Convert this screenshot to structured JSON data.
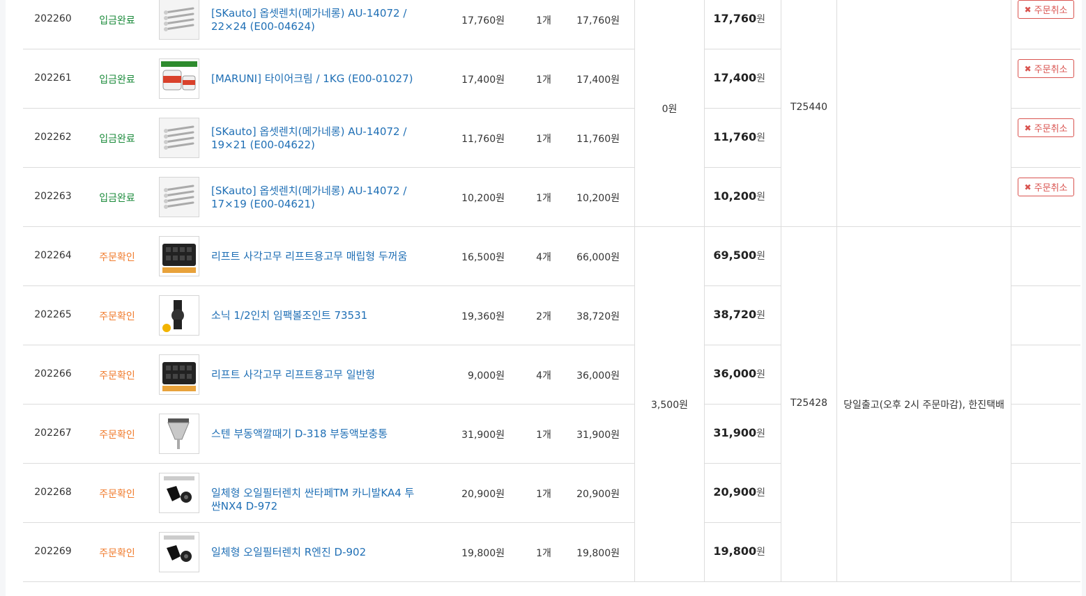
{
  "rows": [
    {
      "id": "202260",
      "status": "입금완료",
      "status_type": "paid",
      "name": "[SKauto] 옵셋렌치(메가네롱) AU-14072 / 22×24 (E00-04624)",
      "price": "17,760원",
      "qty": "1개",
      "sum": "17,760원",
      "total_num": "17,760",
      "thumb": "wrench"
    },
    {
      "id": "202261",
      "status": "입금완료",
      "status_type": "paid",
      "name": "[MARUNI] 타이어크림 / 1KG (E00-01027)",
      "price": "17,400원",
      "qty": "1개",
      "sum": "17,400원",
      "total_num": "17,400",
      "thumb": "cream"
    },
    {
      "id": "202262",
      "status": "입금완료",
      "status_type": "paid",
      "name": "[SKauto] 옵셋렌치(메가네롱) AU-14072 / 19×21 (E00-04622)",
      "price": "11,760원",
      "qty": "1개",
      "sum": "11,760원",
      "total_num": "11,760",
      "thumb": "wrench"
    },
    {
      "id": "202263",
      "status": "입금완료",
      "status_type": "paid",
      "name": "[SKauto] 옵셋렌치(메가네롱) AU-14072 / 17×19 (E00-04621)",
      "price": "10,200원",
      "qty": "1개",
      "sum": "10,200원",
      "total_num": "10,200",
      "thumb": "wrench"
    },
    {
      "id": "202264",
      "status": "주문확인",
      "status_type": "confirm",
      "name": "리프트 사각고무 리프트용고무 매립형 두꺼움",
      "price": "16,500원",
      "qty": "4개",
      "sum": "66,000원",
      "total_num": "69,500",
      "thumb": "rubber"
    },
    {
      "id": "202265",
      "status": "주문확인",
      "status_type": "confirm",
      "name": "소닉 1/2인치 임팩볼조인트 73531",
      "price": "19,360원",
      "qty": "2개",
      "sum": "38,720원",
      "total_num": "38,720",
      "thumb": "joint"
    },
    {
      "id": "202266",
      "status": "주문확인",
      "status_type": "confirm",
      "name": "리프트 사각고무 리프트용고무 일반형",
      "price": "9,000원",
      "qty": "4개",
      "sum": "36,000원",
      "total_num": "36,000",
      "thumb": "rubber"
    },
    {
      "id": "202267",
      "status": "주문확인",
      "status_type": "confirm",
      "name": "스텐 부동액깔때기 D-318 부동액보충통",
      "price": "31,900원",
      "qty": "1개",
      "sum": "31,900원",
      "total_num": "31,900",
      "thumb": "funnel"
    },
    {
      "id": "202268",
      "status": "주문확인",
      "status_type": "confirm",
      "name": "일체형 오일필터렌치 싼타페TM 카니발KA4 투싼NX4 D-972",
      "price": "20,900원",
      "qty": "1개",
      "sum": "20,900원",
      "total_num": "20,900",
      "thumb": "filter"
    },
    {
      "id": "202269",
      "status": "주문확인",
      "status_type": "confirm",
      "name": "일체형 오일필터렌치 R엔진 D-902",
      "price": "19,800원",
      "qty": "1개",
      "sum": "19,800원",
      "total_num": "19,800",
      "thumb": "filter"
    }
  ],
  "currency_unit": "원",
  "cancel_label": "주문취소",
  "groups": [
    {
      "shipping_fee": "0원",
      "tracking": "T25440",
      "delivery_note": ""
    },
    {
      "shipping_fee": "3,500원",
      "tracking": "T25428",
      "delivery_note": "당일출고(오후 2시 주문마감), 한진택배"
    }
  ],
  "colors": {
    "link": "#1f6fb5",
    "paid": "#1a8a3a",
    "confirm": "#f07b2c",
    "cancel": "#d9534f"
  }
}
